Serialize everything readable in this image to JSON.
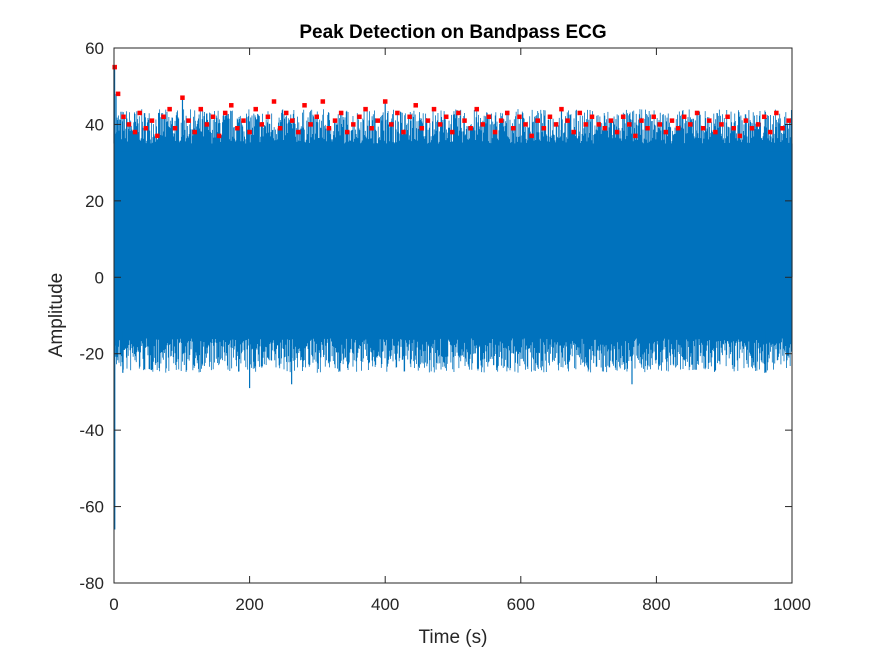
{
  "chart_data": {
    "type": "line",
    "title": "Peak Detection on Bandpass ECG",
    "xlabel": "Time (s)",
    "ylabel": "Amplitude",
    "xlim": [
      0,
      1000
    ],
    "ylim": [
      -80,
      60
    ],
    "x_ticks": [
      "0",
      "200",
      "400",
      "600",
      "800",
      "1000"
    ],
    "y_ticks": [
      "60",
      "40",
      "20",
      "0",
      "-20",
      "-40",
      "-60",
      "-80"
    ],
    "grid": false,
    "legend": "none",
    "series": [
      {
        "role": "bandpass-ecg",
        "color": "#0072BD",
        "style": "line",
        "dense_band": {
          "upper": 35,
          "lower": -14
        },
        "spike_peaks": {
          "typical_min": 35,
          "typical_max": 44
        },
        "spike_troughs": {
          "typical_min": -25,
          "typical_max": -16
        },
        "start_transient": {
          "x": 0,
          "max": 55,
          "min": -66
        },
        "points": [
          [
            0,
            55
          ],
          [
            1,
            -66
          ],
          [
            3,
            48
          ],
          [
            13,
            -25
          ],
          [
            52,
            -24
          ],
          [
            101,
            47
          ],
          [
            200,
            -29
          ],
          [
            262,
            -28
          ],
          [
            400,
            46
          ],
          [
            560,
            -23
          ],
          [
            660,
            44
          ],
          [
            715,
            40
          ],
          [
            764,
            -28
          ],
          [
            860,
            43
          ],
          [
            960,
            -25
          ],
          [
            1000,
            0
          ]
        ]
      },
      {
        "role": "detected-peaks",
        "color": "#FF0000",
        "style": "markers",
        "marker": "square",
        "points": [
          [
            1,
            55
          ],
          [
            6,
            48
          ],
          [
            14,
            42
          ],
          [
            22,
            40
          ],
          [
            31,
            38
          ],
          [
            38,
            43
          ],
          [
            47,
            39
          ],
          [
            56,
            41
          ],
          [
            64,
            37
          ],
          [
            73,
            42
          ],
          [
            82,
            44
          ],
          [
            90,
            39
          ],
          [
            101,
            47
          ],
          [
            110,
            41
          ],
          [
            119,
            38
          ],
          [
            128,
            44
          ],
          [
            137,
            40
          ],
          [
            146,
            42
          ],
          [
            155,
            37
          ],
          [
            164,
            43
          ],
          [
            173,
            45
          ],
          [
            182,
            39
          ],
          [
            191,
            41
          ],
          [
            200,
            38
          ],
          [
            209,
            44
          ],
          [
            218,
            40
          ],
          [
            227,
            42
          ],
          [
            236,
            46
          ],
          [
            245,
            39
          ],
          [
            254,
            43
          ],
          [
            263,
            41
          ],
          [
            272,
            38
          ],
          [
            281,
            45
          ],
          [
            290,
            40
          ],
          [
            299,
            42
          ],
          [
            308,
            46
          ],
          [
            317,
            39
          ],
          [
            326,
            41
          ],
          [
            335,
            43
          ],
          [
            344,
            38
          ],
          [
            353,
            40
          ],
          [
            362,
            42
          ],
          [
            371,
            44
          ],
          [
            380,
            39
          ],
          [
            389,
            41
          ],
          [
            400,
            46
          ],
          [
            409,
            40
          ],
          [
            418,
            43
          ],
          [
            427,
            38
          ],
          [
            436,
            42
          ],
          [
            445,
            45
          ],
          [
            454,
            39
          ],
          [
            463,
            41
          ],
          [
            472,
            44
          ],
          [
            481,
            40
          ],
          [
            490,
            42
          ],
          [
            499,
            38
          ],
          [
            508,
            43
          ],
          [
            517,
            41
          ],
          [
            526,
            39
          ],
          [
            535,
            44
          ],
          [
            544,
            40
          ],
          [
            553,
            42
          ],
          [
            562,
            38
          ],
          [
            571,
            41
          ],
          [
            580,
            43
          ],
          [
            589,
            39
          ],
          [
            598,
            42
          ],
          [
            607,
            40
          ],
          [
            616,
            37
          ],
          [
            625,
            41
          ],
          [
            634,
            39
          ],
          [
            643,
            42
          ],
          [
            652,
            40
          ],
          [
            660,
            44
          ],
          [
            669,
            41
          ],
          [
            678,
            38
          ],
          [
            687,
            43
          ],
          [
            696,
            40
          ],
          [
            705,
            42
          ],
          [
            715,
            40
          ],
          [
            724,
            39
          ],
          [
            733,
            41
          ],
          [
            742,
            38
          ],
          [
            751,
            42
          ],
          [
            760,
            40
          ],
          [
            769,
            37
          ],
          [
            778,
            41
          ],
          [
            787,
            39
          ],
          [
            796,
            42
          ],
          [
            805,
            40
          ],
          [
            814,
            38
          ],
          [
            823,
            41
          ],
          [
            832,
            39
          ],
          [
            841,
            42
          ],
          [
            850,
            40
          ],
          [
            860,
            43
          ],
          [
            869,
            39
          ],
          [
            878,
            41
          ],
          [
            887,
            38
          ],
          [
            896,
            40
          ],
          [
            905,
            42
          ],
          [
            914,
            39
          ],
          [
            923,
            37
          ],
          [
            932,
            41
          ],
          [
            941,
            39
          ],
          [
            950,
            40
          ],
          [
            959,
            42
          ],
          [
            968,
            38
          ],
          [
            977,
            43
          ],
          [
            986,
            39
          ],
          [
            995,
            41
          ]
        ]
      }
    ]
  }
}
